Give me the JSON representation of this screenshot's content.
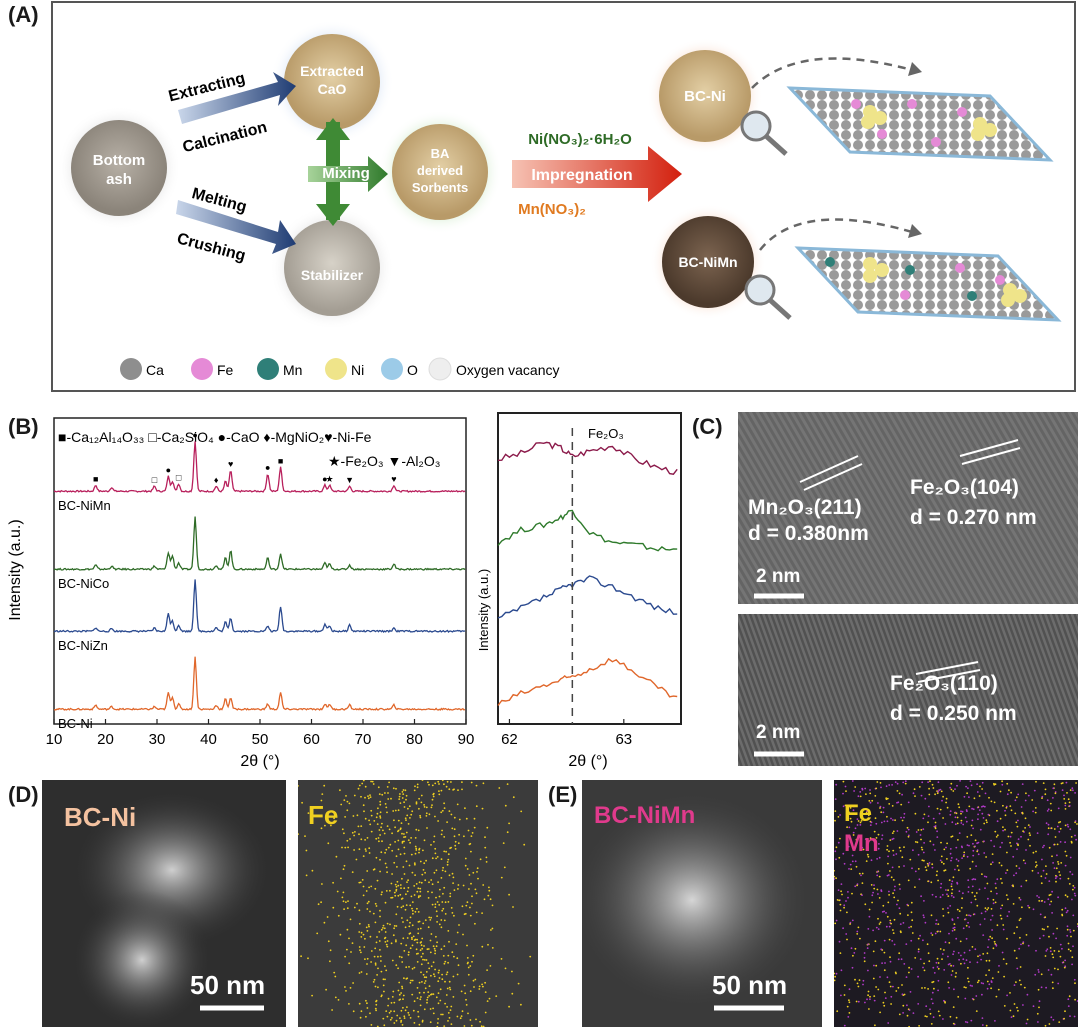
{
  "panels": {
    "a": "(A)",
    "b": "(B)",
    "c": "(C)",
    "d": "(D)",
    "e": "(E)"
  },
  "schematic": {
    "bottom_ash": [
      "Bottom",
      "ash"
    ],
    "extracted": [
      "Extracted",
      "CaO"
    ],
    "stabilizer": "Stabilizer",
    "sorbents": [
      "BA",
      "derived",
      "Sorbents"
    ],
    "arrow_extracting": "Extracting",
    "arrow_calcination": "Calcination",
    "arrow_melting": "Melting",
    "arrow_crushing": "Crushing",
    "mixing": "Mixing",
    "reagent_ni": "Ni(NO₃)₂·6H₂O",
    "impregnation": "Impregnation",
    "reagent_mn": "Mn(NO₃)₂",
    "bc_ni": "BC-Ni",
    "bc_nimn": "BC-NiMn",
    "legend": [
      {
        "label": "Ca",
        "color": "#8e8e8e"
      },
      {
        "label": "Fe",
        "color": "#e58ad6"
      },
      {
        "label": "Mn",
        "color": "#2f7f78"
      },
      {
        "label": "Ni",
        "color": "#efe48a"
      },
      {
        "label": "O",
        "color": "#9ccbe8"
      },
      {
        "label": "Oxygen vacancy",
        "color": "#eeeeee"
      }
    ]
  },
  "xrd_legend": {
    "line1": "■-Ca₁₂Al₁₄O₃₃ □-Ca₂SiO₄ ●-CaO ♦-MgNiO₂♥-Ni-Fe",
    "line2": "★-Fe₂O₃ ▼-Al₂O₃"
  },
  "chart_data": [
    {
      "type": "line",
      "xlabel": "2θ (°)",
      "ylabel": "Intensity (a.u.)",
      "xlim": [
        10,
        90
      ],
      "xticks": [
        "10",
        "20",
        "30",
        "40",
        "50",
        "60",
        "70",
        "80",
        "90"
      ],
      "peaks_2theta": [
        18.1,
        21.2,
        29.5,
        32.2,
        33.0,
        34.2,
        37.4,
        41.5,
        43.3,
        44.3,
        51.5,
        54.0,
        62.6,
        63.5,
        67.4,
        76.0
      ],
      "series": [
        {
          "name": "BC-NiMn",
          "color": "#b8205c",
          "intensity": [
            0.12,
            0.08,
            0.1,
            0.3,
            0.2,
            0.15,
            1.0,
            0.1,
            0.2,
            0.42,
            0.35,
            0.48,
            0.12,
            0.12,
            0.1,
            0.12
          ]
        },
        {
          "name": "BC-NiCo",
          "color": "#2e6b26",
          "intensity": [
            0.08,
            0.06,
            0.06,
            0.32,
            0.26,
            0.12,
            1.0,
            0.08,
            0.22,
            0.36,
            0.22,
            0.3,
            0.12,
            0.1,
            0.08,
            0.1
          ]
        },
        {
          "name": "BC-NiZn",
          "color": "#2b4a8f",
          "intensity": [
            0.07,
            0.05,
            0.06,
            0.35,
            0.2,
            0.12,
            1.0,
            0.07,
            0.18,
            0.26,
            0.1,
            0.48,
            0.14,
            0.1,
            0.12,
            0.06
          ]
        },
        {
          "name": "BC-Ni",
          "color": "#e0672b",
          "intensity": [
            0.08,
            0.05,
            0.05,
            0.32,
            0.24,
            0.1,
            1.0,
            0.08,
            0.2,
            0.22,
            0.1,
            0.32,
            0.1,
            0.1,
            0.08,
            0.08
          ]
        }
      ]
    },
    {
      "type": "line",
      "annotation": "Fe₂O₃",
      "xlabel": "2θ (°)",
      "ylabel": "Intensity (a.u.)",
      "xlim": [
        61.9,
        63.5
      ],
      "xticks": [
        "62",
        "63"
      ],
      "reference_line": 62.55,
      "series": [
        {
          "name": "BC-NiMn",
          "color": "#8b1a4a",
          "x": [
            61.9,
            62.1,
            62.3,
            62.45,
            62.55,
            62.7,
            62.9,
            63.1,
            63.3,
            63.5
          ],
          "y": [
            0.55,
            0.65,
            0.85,
            0.75,
            0.6,
            0.7,
            0.8,
            0.55,
            0.4,
            0.3
          ]
        },
        {
          "name": "BC-NiCo",
          "color": "#2e7a2b",
          "x": [
            61.9,
            62.1,
            62.3,
            62.45,
            62.55,
            62.7,
            62.9,
            63.1,
            63.3,
            63.5
          ],
          "y": [
            0.35,
            0.6,
            0.7,
            0.85,
            1.0,
            0.55,
            0.35,
            0.3,
            0.22,
            0.2
          ]
        },
        {
          "name": "BC-NiZn",
          "color": "#2b4a8f",
          "x": [
            61.9,
            62.1,
            62.3,
            62.45,
            62.55,
            62.7,
            62.9,
            63.1,
            63.3,
            63.5
          ],
          "y": [
            0.2,
            0.4,
            0.6,
            0.75,
            0.85,
            0.95,
            0.8,
            0.6,
            0.4,
            0.3
          ]
        },
        {
          "name": "BC-Ni",
          "color": "#e0672b",
          "x": [
            61.9,
            62.1,
            62.3,
            62.45,
            62.55,
            62.7,
            62.9,
            63.1,
            63.3,
            63.5
          ],
          "y": [
            0.1,
            0.3,
            0.45,
            0.55,
            0.62,
            0.75,
            0.95,
            0.7,
            0.4,
            0.15
          ]
        }
      ]
    }
  ],
  "hrtem": {
    "top_label1": "Mn₂O₃(211)",
    "top_d1": "d = 0.380nm",
    "top_label2": "Fe₂O₃(104)",
    "top_d2": "d = 0.270 nm",
    "top_scale": "2 nm",
    "bot_label": "Fe₂O₃(110)",
    "bot_d": "d = 0.250 nm",
    "bot_scale": "2 nm"
  },
  "eds": {
    "d_sample": "BC-Ni",
    "d_scale": "50 nm",
    "d_map": "Fe",
    "e_sample": "BC-NiMn",
    "e_scale": "50 nm",
    "e_map1": "Fe",
    "e_map2": "Mn"
  }
}
